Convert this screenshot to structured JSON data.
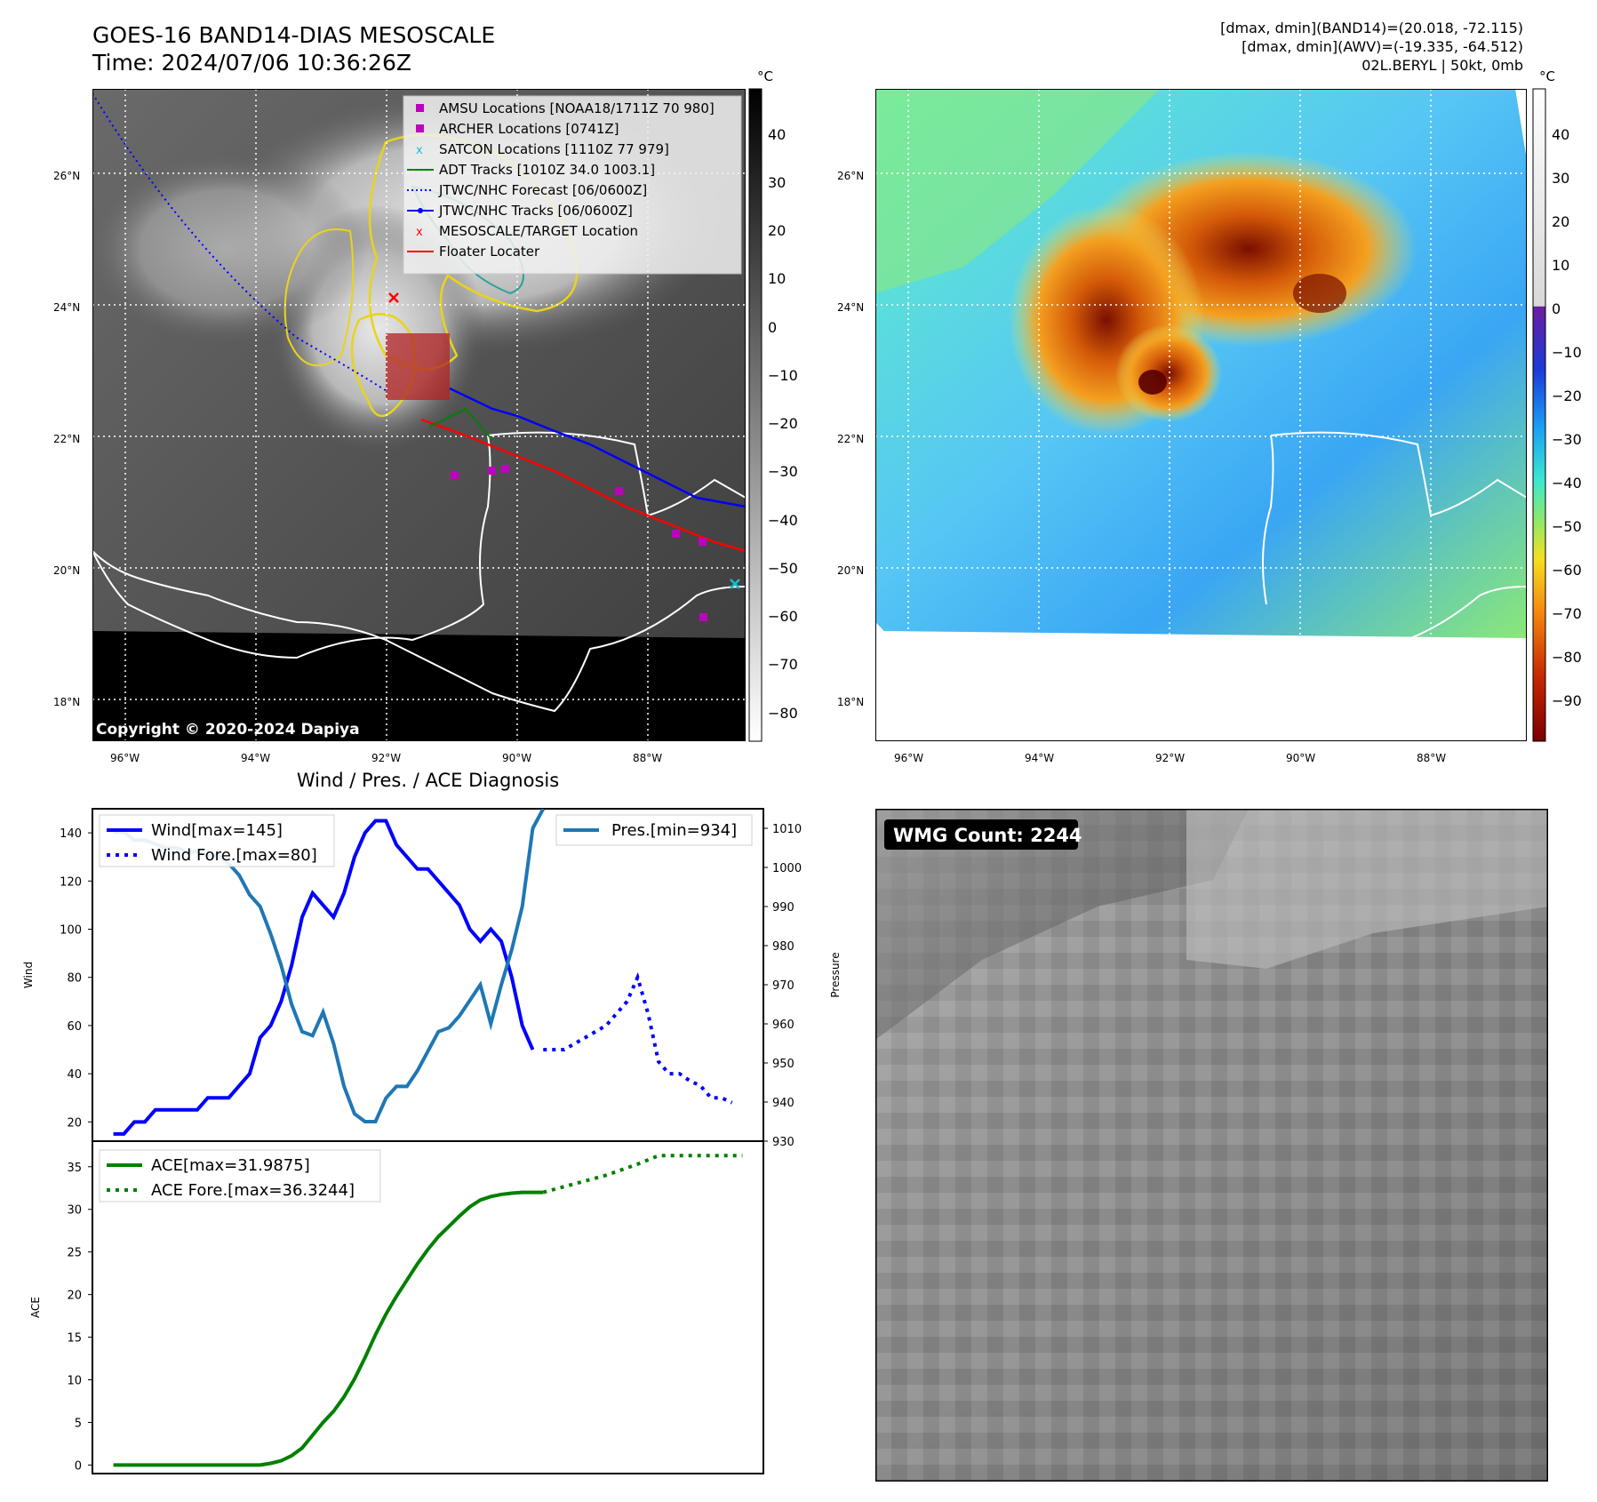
{
  "header": {
    "title": "GOES-16 BAND14-DIAS MESOSCALE",
    "time": "Time: 2024/07/06 10:36:26Z",
    "meta_lines": [
      "[dmax, dmin](BAND14)=(20.018, -72.115)",
      "[dmax, dmin](AWV)=(-19.335, -64.512)",
      "02L.BERYL | 50kt, 0mb"
    ]
  },
  "map_panel": {
    "copyright": "Copyright © 2020-2024 Dapiya",
    "lat_labels": [
      "26°N",
      "24°N",
      "22°N",
      "20°N",
      "18°N"
    ],
    "lon_labels": [
      "96°W",
      "94°W",
      "92°W",
      "90°W",
      "88°W"
    ],
    "legend": [
      {
        "label": "AMSU Locations [NOAA18/1711Z 70 980]",
        "marker": "square",
        "color": "#c000c0"
      },
      {
        "label": "ARCHER Locations [0741Z]",
        "marker": "square",
        "color": "#c000c0"
      },
      {
        "label": "SATCON Locations [1110Z 77 979]",
        "marker": "x",
        "color": "#17becf"
      },
      {
        "label": "ADT Tracks [1010Z 34.0 1003.1]",
        "marker": "line",
        "color": "#008000"
      },
      {
        "label": "JTWC/NHC Forecast [06/0600Z]",
        "marker": "dotted",
        "color": "#0000ff"
      },
      {
        "label": "JTWC/NHC Tracks [06/0600Z]",
        "marker": "line-dot",
        "color": "#0000ff"
      },
      {
        "label": "MESOSCALE/TARGET Location",
        "marker": "x",
        "color": "#ff0000"
      },
      {
        "label": "Floater Locater",
        "marker": "line",
        "color": "#ff0000"
      }
    ]
  },
  "colorbar_gray": {
    "unit": "°C",
    "ticks": [
      "40",
      "30",
      "20",
      "10",
      "0",
      "−10",
      "−20",
      "−30",
      "−40",
      "−50",
      "−60",
      "−70",
      "−80"
    ]
  },
  "colorbar_color": {
    "unit": "°C",
    "ticks": [
      "40",
      "30",
      "20",
      "10",
      "0",
      "−10",
      "−20",
      "−30",
      "−40",
      "−50",
      "−60",
      "−70",
      "−80",
      "−90"
    ]
  },
  "wmg_panel": {
    "badge": "WMG Count: 2244"
  },
  "chart_data": [
    {
      "type": "line",
      "title": "Wind / Pres. / ACE Diagnosis",
      "ylabel": "Wind",
      "y2label": "Pressure",
      "ylim": [
        12,
        150
      ],
      "y2lim": [
        930,
        1015
      ],
      "yticks": [
        "20",
        "40",
        "60",
        "80",
        "100",
        "120",
        "140"
      ],
      "y2ticks": [
        "930",
        "940",
        "950",
        "960",
        "970",
        "980",
        "990",
        "1000",
        "1010"
      ],
      "series": [
        {
          "name": "Wind[max=145]",
          "color": "#0000ff",
          "style": "solid",
          "x": [
            0,
            1,
            2,
            3,
            4,
            5,
            6,
            7,
            8,
            9,
            10,
            11,
            12,
            13,
            14,
            15,
            16,
            17,
            18,
            19,
            20,
            21,
            22,
            23,
            24,
            25,
            26,
            27,
            28,
            29,
            30,
            31,
            32,
            33,
            34,
            35,
            36,
            37,
            38,
            39,
            40
          ],
          "values": [
            15,
            15,
            20,
            20,
            25,
            25,
            25,
            25,
            25,
            30,
            30,
            30,
            35,
            40,
            55,
            60,
            70,
            85,
            105,
            115,
            110,
            105,
            115,
            130,
            140,
            145,
            145,
            135,
            130,
            125,
            125,
            120,
            115,
            110,
            100,
            95,
            100,
            95,
            80,
            60,
            50
          ]
        },
        {
          "name": "Wind Fore.[max=80]",
          "color": "#0000ff",
          "style": "dotted",
          "x": [
            41,
            43,
            45,
            47,
            49,
            50,
            51,
            52,
            53,
            54,
            55,
            56,
            57,
            58,
            59
          ],
          "values": [
            50,
            50,
            55,
            60,
            70,
            80,
            65,
            45,
            40,
            40,
            37,
            35,
            30,
            30,
            28
          ]
        },
        {
          "name": "Pres.[min=934]",
          "color": "#1f77b4",
          "style": "solid",
          "axis": "right",
          "x": [
            0,
            1,
            2,
            3,
            4,
            5,
            6,
            7,
            8,
            9,
            10,
            11,
            12,
            13,
            14,
            15,
            16,
            17,
            18,
            19,
            20,
            21,
            22,
            23,
            24,
            25,
            26,
            27,
            28,
            29,
            30,
            31,
            32,
            33,
            34,
            35,
            36,
            37,
            38,
            39,
            40,
            41
          ],
          "values": [
            1009,
            1009,
            1007,
            1007,
            1006,
            1005,
            1005,
            1004,
            1004,
            1003,
            1003,
            1001,
            998,
            993,
            990,
            983,
            975,
            965,
            958,
            957,
            963,
            955,
            944,
            937,
            935,
            935,
            941,
            944,
            944,
            948,
            953,
            958,
            959,
            962,
            966,
            970,
            960,
            970,
            979,
            990,
            1010,
            1015
          ]
        }
      ]
    },
    {
      "type": "line",
      "ylabel": "ACE",
      "ylim": [
        -1,
        38
      ],
      "yticks": [
        "0",
        "5",
        "10",
        "15",
        "20",
        "25",
        "30",
        "35"
      ],
      "series": [
        {
          "name": "ACE[max=31.9875]",
          "color": "#008000",
          "style": "solid",
          "x": [
            0,
            2,
            4,
            6,
            8,
            10,
            12,
            14,
            15,
            16,
            17,
            18,
            19,
            20,
            21,
            22,
            23,
            24,
            25,
            26,
            27,
            28,
            29,
            30,
            31,
            32,
            33,
            34,
            35,
            36,
            37,
            38,
            39,
            40,
            41
          ],
          "values": [
            0,
            0,
            0,
            0,
            0,
            0,
            0,
            0,
            0.2,
            0.5,
            1.1,
            2,
            3.5,
            5,
            6.3,
            8,
            10.1,
            12.6,
            15.3,
            17.7,
            19.8,
            21.7,
            23.6,
            25.3,
            26.8,
            28,
            29.2,
            30.3,
            31.1,
            31.5,
            31.75,
            31.9,
            31.99,
            31.99,
            31.99
          ]
        },
        {
          "name": "ACE Fore.[max=36.3244]",
          "color": "#008000",
          "style": "dotted",
          "x": [
            41,
            44,
            47,
            50,
            52,
            55,
            58,
            60
          ],
          "values": [
            32,
            33,
            34,
            35.3,
            36.3,
            36.3,
            36.3,
            36.3
          ]
        }
      ]
    }
  ]
}
